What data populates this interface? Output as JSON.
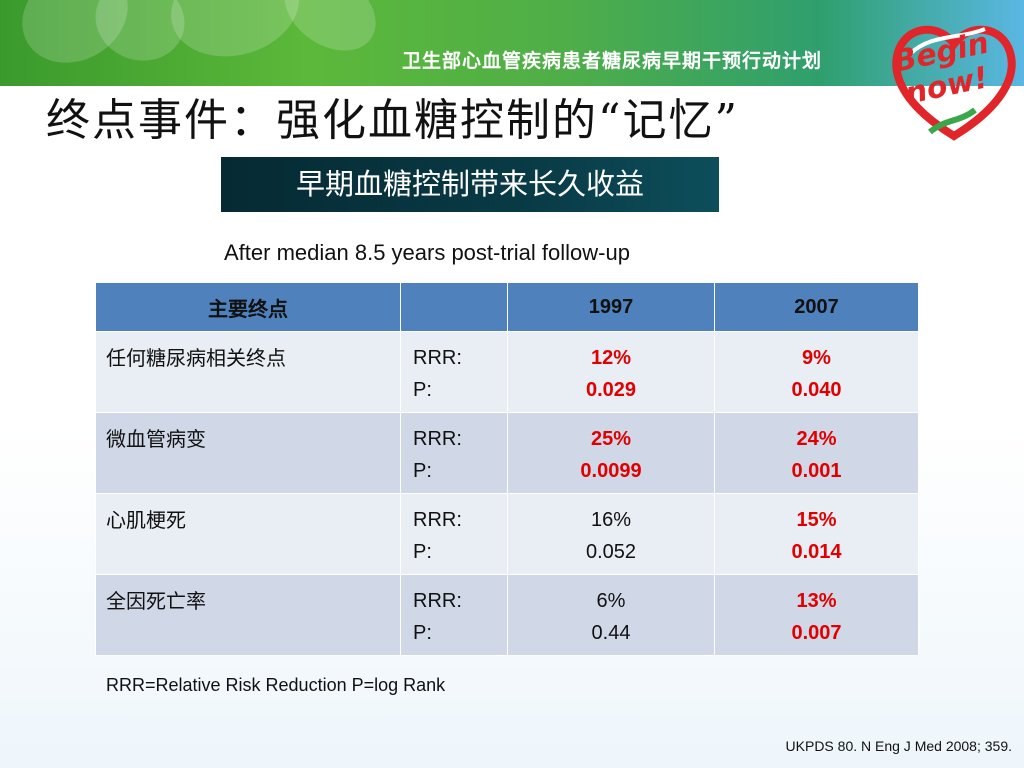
{
  "banner": {
    "program_title": "卫生部心血管疾病患者糖尿病早期干预行动计划",
    "logo_text_line1": "Begin",
    "logo_text_line2": "now!",
    "colors": {
      "green": "#4fae48",
      "blue": "#5ab7e3",
      "logo_red": "#e0262b"
    }
  },
  "slide": {
    "title": "终点事件：强化血糖控制的“记忆”",
    "subtitle": "早期血糖控制带来长久收益",
    "followup": "After median 8.5 years post-trial follow-up"
  },
  "table": {
    "headers": [
      "主要终点",
      "",
      "1997",
      "2007"
    ],
    "rows": [
      {
        "name": "任何糖尿病相关终点",
        "metric_rrr": "RRR:",
        "metric_p": "P:",
        "v1997_rrr": "12%",
        "v1997_p": "0.029",
        "v1997_sig": true,
        "v2007_rrr": "9%",
        "v2007_p": "0.040",
        "v2007_sig": true
      },
      {
        "name": "微血管病变",
        "metric_rrr": "RRR:",
        "metric_p": "P:",
        "v1997_rrr": "25%",
        "v1997_p": "0.0099",
        "v1997_sig": true,
        "v2007_rrr": "24%",
        "v2007_p": "0.001",
        "v2007_sig": true
      },
      {
        "name": "心肌梗死",
        "metric_rrr": "RRR:",
        "metric_p": "P:",
        "v1997_rrr": "16%",
        "v1997_p": "0.052",
        "v1997_sig": false,
        "v2007_rrr": "15%",
        "v2007_p": "0.014",
        "v2007_sig": true
      },
      {
        "name": "全因死亡率",
        "metric_rrr": "RRR:",
        "metric_p": "P:",
        "v1997_rrr": "6%",
        "v1997_p": "0.44",
        "v1997_sig": false,
        "v2007_rrr": "13%",
        "v2007_p": "0.007",
        "v2007_sig": true
      }
    ],
    "colors": {
      "header": "#4f81bd",
      "row_odd": "#e9edf4",
      "row_even": "#d0d8e8",
      "significant": "#e00000"
    }
  },
  "footer": {
    "legend": "RRR=Relative Risk Reduction P=log Rank",
    "citation": "UKPDS 80. N Eng J Med 2008; 359."
  }
}
